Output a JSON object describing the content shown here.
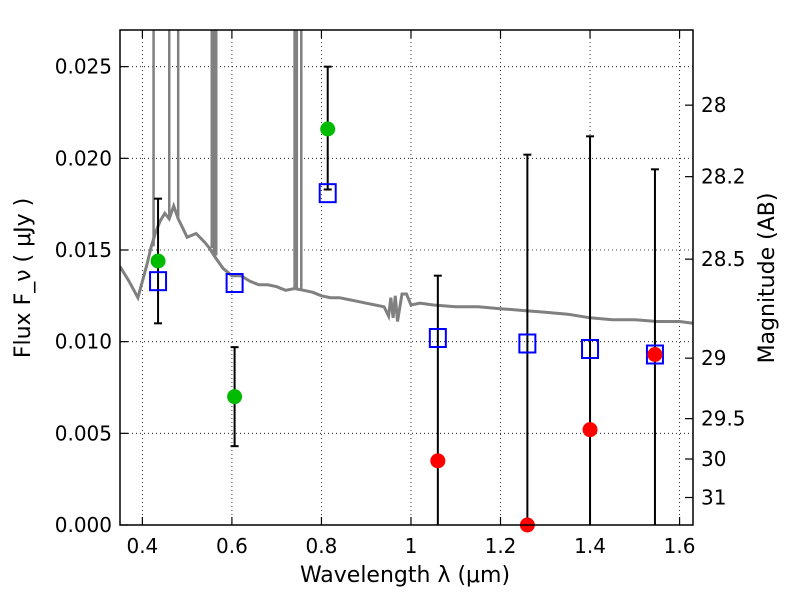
{
  "chart_data": {
    "type": "scatter",
    "title": "",
    "xlabel": "Wavelength  λ (μm)",
    "ylabel": "Flux  F_ν  ( μJy )",
    "y2label": "Magnitude (AB)",
    "xlim": [
      0.35,
      1.63
    ],
    "ylim": [
      0.0,
      0.027
    ],
    "grid": true,
    "x_ticks": [
      0.4,
      0.6,
      0.8,
      1.0,
      1.2,
      1.4,
      1.6
    ],
    "x_tick_labels": [
      "0.4",
      "0.6",
      "0.8",
      "1",
      "1.2",
      "1.4",
      "1.6"
    ],
    "y_ticks": [
      0.0,
      0.005,
      0.01,
      0.015,
      0.02,
      0.025
    ],
    "y_tick_labels": [
      "0.000",
      "0.005",
      "0.010",
      "0.015",
      "0.020",
      "0.025"
    ],
    "y2_ticks": [
      {
        "label": "28",
        "flux": 0.0229
      },
      {
        "label": "28.2",
        "flux": 0.019
      },
      {
        "label": "28.5",
        "flux": 0.0145
      },
      {
        "label": "29",
        "flux": 0.0091
      },
      {
        "label": "29.5",
        "flux": 0.0058
      },
      {
        "label": "30",
        "flux": 0.0036
      },
      {
        "label": "31",
        "flux": 0.0015
      }
    ],
    "series": [
      {
        "marker": "open-square",
        "color": "#0000ff",
        "points": [
          {
            "x": 0.435,
            "y": 0.0133
          },
          {
            "x": 0.606,
            "y": 0.0132
          },
          {
            "x": 0.814,
            "y": 0.0181
          },
          {
            "x": 1.06,
            "y": 0.0102
          },
          {
            "x": 1.26,
            "y": 0.0099
          },
          {
            "x": 1.4,
            "y": 0.0096
          },
          {
            "x": 1.545,
            "y": 0.0093
          }
        ]
      },
      {
        "marker": "filled-circle",
        "color": "#00bb00",
        "points": [
          {
            "x": 0.435,
            "y": 0.0144,
            "err_low": 0.011,
            "err_high": 0.0178
          },
          {
            "x": 0.606,
            "y": 0.007,
            "err_low": 0.0043,
            "err_high": 0.0097
          },
          {
            "x": 0.814,
            "y": 0.0216,
            "err_low": 0.0183,
            "err_high": 0.025
          }
        ]
      },
      {
        "marker": "filled-circle",
        "color": "#ff0000",
        "points": [
          {
            "x": 1.06,
            "y": 0.0035,
            "err_low": 0.0,
            "err_high": 0.0136
          },
          {
            "x": 1.26,
            "y": 0.0,
            "err_low": 0.0,
            "err_high": 0.0202
          },
          {
            "x": 1.4,
            "y": 0.0052,
            "err_low": 0.0,
            "err_high": 0.0212
          },
          {
            "x": 1.545,
            "y": 0.0093,
            "err_low": 0.0,
            "err_high": 0.0194
          }
        ]
      }
    ],
    "model_spectrum": {
      "color": "#808080",
      "points": [
        [
          0.35,
          0.0141
        ],
        [
          0.37,
          0.0133
        ],
        [
          0.39,
          0.0124
        ],
        [
          0.41,
          0.0142
        ],
        [
          0.42,
          0.0152
        ],
        [
          0.43,
          0.016
        ],
        [
          0.44,
          0.0166
        ],
        [
          0.45,
          0.017
        ],
        [
          0.46,
          0.0167
        ],
        [
          0.47,
          0.0174
        ],
        [
          0.48,
          0.0167
        ],
        [
          0.49,
          0.0162
        ],
        [
          0.5,
          0.0157
        ],
        [
          0.52,
          0.0159
        ],
        [
          0.54,
          0.0154
        ],
        [
          0.55,
          0.0151
        ],
        [
          0.56,
          0.0147
        ],
        [
          0.58,
          0.014
        ],
        [
          0.6,
          0.0136
        ],
        [
          0.62,
          0.0136
        ],
        [
          0.64,
          0.0133
        ],
        [
          0.66,
          0.0131
        ],
        [
          0.68,
          0.0131
        ],
        [
          0.7,
          0.013
        ],
        [
          0.72,
          0.0128
        ],
        [
          0.74,
          0.0129
        ],
        [
          0.76,
          0.0128
        ],
        [
          0.78,
          0.0127
        ],
        [
          0.8,
          0.0125
        ],
        [
          0.82,
          0.0124
        ],
        [
          0.84,
          0.0124
        ],
        [
          0.86,
          0.0123
        ],
        [
          0.88,
          0.0122
        ],
        [
          0.9,
          0.0121
        ],
        [
          0.92,
          0.012
        ],
        [
          0.94,
          0.0119
        ],
        [
          0.95,
          0.0114
        ],
        [
          0.955,
          0.0124
        ],
        [
          0.96,
          0.0113
        ],
        [
          0.965,
          0.0125
        ],
        [
          0.97,
          0.0111
        ],
        [
          0.98,
          0.0126
        ],
        [
          0.99,
          0.0126
        ],
        [
          1.0,
          0.012
        ],
        [
          1.02,
          0.0121
        ],
        [
          1.05,
          0.012
        ],
        [
          1.1,
          0.0119
        ],
        [
          1.15,
          0.0119
        ],
        [
          1.2,
          0.0118
        ],
        [
          1.25,
          0.0117
        ],
        [
          1.3,
          0.0116
        ],
        [
          1.35,
          0.0115
        ],
        [
          1.4,
          0.0113
        ],
        [
          1.45,
          0.0112
        ],
        [
          1.5,
          0.0112
        ],
        [
          1.55,
          0.0111
        ],
        [
          1.6,
          0.0111
        ],
        [
          1.63,
          0.011
        ]
      ],
      "spikes": [
        {
          "x": 0.425,
          "y": 0.027
        },
        {
          "x": 0.46,
          "y": 0.027
        },
        {
          "x": 0.48,
          "y": 0.027
        },
        {
          "x": 0.555,
          "y": 0.027
        },
        {
          "x": 0.56,
          "y": 0.027
        },
        {
          "x": 0.565,
          "y": 0.027
        },
        {
          "x": 0.74,
          "y": 0.027
        },
        {
          "x": 0.745,
          "y": 0.027
        },
        {
          "x": 0.755,
          "y": 0.027
        }
      ]
    }
  }
}
